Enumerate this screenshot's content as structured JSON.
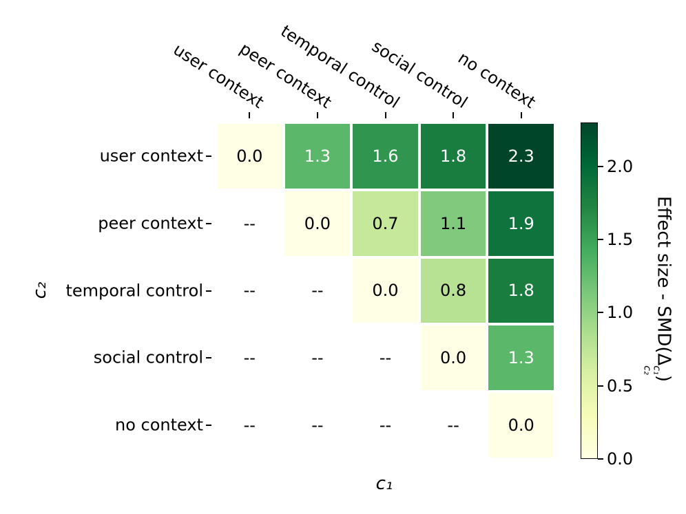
{
  "figure": {
    "background": "#ffffff",
    "text_color": "#000000"
  },
  "chart_data": {
    "type": "heatmap",
    "categories": [
      "user context",
      "peer context",
      "temporal control",
      "social control",
      "no context"
    ],
    "xlabel": "c₁",
    "ylabel": "c₂",
    "values": [
      [
        0.0,
        1.3,
        1.6,
        1.8,
        2.3
      ],
      [
        null,
        0.0,
        0.7,
        1.1,
        1.9
      ],
      [
        null,
        null,
        0.0,
        0.8,
        1.8
      ],
      [
        null,
        null,
        null,
        0.0,
        1.3
      ],
      [
        null,
        null,
        null,
        null,
        0.0
      ]
    ],
    "cell_labels": [
      [
        "0.0",
        "1.3",
        "1.6",
        "1.8",
        "2.3"
      ],
      [
        "--",
        "0.0",
        "0.7",
        "1.1",
        "1.9"
      ],
      [
        "--",
        "--",
        "0.0",
        "0.8",
        "1.8"
      ],
      [
        "--",
        "--",
        "--",
        "0.0",
        "1.3"
      ],
      [
        "--",
        "--",
        "--",
        "--",
        "0.0"
      ]
    ],
    "masked_text": "--",
    "vmin": 0.0,
    "vmax": 2.3,
    "grid": false,
    "legend_position": "right-colorbar",
    "colormap_name": "YlGn",
    "colormap_stops": [
      "#ffffe5",
      "#f7fcb9",
      "#d9f0a3",
      "#addd8e",
      "#78c679",
      "#41ab5d",
      "#238443",
      "#006837",
      "#004529"
    ],
    "annotation_text_dark": "#000000",
    "annotation_text_light": "#ffffff",
    "colorbar": {
      "ticks": [
        0.0,
        0.5,
        1.0,
        1.5,
        2.0
      ],
      "tick_labels": [
        "0.0",
        "0.5",
        "1.0",
        "1.5",
        "2.0"
      ],
      "label_prefix": "Effect size - SMD(Δ",
      "label_sup": "c₁",
      "label_sub": "c₂",
      "label_suffix": ")"
    }
  }
}
